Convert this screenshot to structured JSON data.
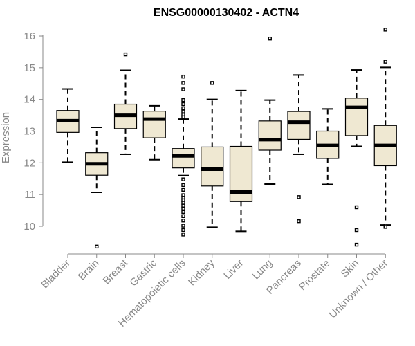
{
  "chart_data": {
    "type": "boxplot",
    "title": "ENSG00000130402 - ACTN4",
    "xlabel": "",
    "ylabel": "Expression",
    "ylim": [
      9.3,
      16.4
    ],
    "yticks": [
      10,
      11,
      12,
      13,
      14,
      15,
      16
    ],
    "grid": false,
    "legend": "none",
    "colors": {
      "box_fill": "#efe8d2",
      "stroke": "#000000",
      "axis": "#888888"
    },
    "categories": [
      "Bladder",
      "Brain",
      "Breast",
      "Gastric",
      "Hematopoietic cells",
      "Kidney",
      "Liver",
      "Lung",
      "Pancreas",
      "Prostate",
      "Skin",
      "Unknown / Other"
    ],
    "boxes": [
      {
        "category": "Bladder",
        "whisker_low": 12.02,
        "q1": 12.96,
        "median": 13.33,
        "q3": 13.65,
        "whisker_high": 14.33,
        "outliers": []
      },
      {
        "category": "Brain",
        "whisker_low": 11.07,
        "q1": 11.61,
        "median": 11.97,
        "q3": 12.32,
        "whisker_high": 13.12,
        "outliers": [
          9.36
        ]
      },
      {
        "category": "Breast",
        "whisker_low": 12.27,
        "q1": 13.08,
        "median": 13.5,
        "q3": 13.85,
        "whisker_high": 14.92,
        "outliers": [
          15.42
        ]
      },
      {
        "category": "Gastric",
        "whisker_low": 12.1,
        "q1": 12.79,
        "median": 13.38,
        "q3": 13.63,
        "whisker_high": 13.8,
        "outliers": []
      },
      {
        "category": "Hematopoietic cells",
        "whisker_low": 11.6,
        "q1": 11.84,
        "median": 12.22,
        "q3": 12.45,
        "whisker_high": 13.38,
        "outliers": [
          14.72,
          14.52,
          14.32,
          13.98,
          13.85,
          13.72,
          13.62,
          13.52,
          13.44,
          11.48,
          11.3,
          11.15,
          10.98,
          10.9,
          10.82,
          10.74,
          10.65,
          10.56,
          10.45,
          10.32,
          10.18,
          10.02,
          9.88,
          9.74
        ]
      },
      {
        "category": "Kidney",
        "whisker_low": 9.97,
        "q1": 11.27,
        "median": 11.8,
        "q3": 12.5,
        "whisker_high": 14.0,
        "outliers": [
          14.52
        ]
      },
      {
        "category": "Liver",
        "whisker_low": 9.84,
        "q1": 10.78,
        "median": 11.08,
        "q3": 12.52,
        "whisker_high": 14.28,
        "outliers": []
      },
      {
        "category": "Lung",
        "whisker_low": 11.33,
        "q1": 12.4,
        "median": 12.73,
        "q3": 13.32,
        "whisker_high": 13.98,
        "outliers": [
          15.92
        ]
      },
      {
        "category": "Pancreas",
        "whisker_low": 12.27,
        "q1": 12.74,
        "median": 13.28,
        "q3": 13.62,
        "whisker_high": 14.77,
        "outliers": [
          10.92,
          10.16
        ]
      },
      {
        "category": "Prostate",
        "whisker_low": 11.32,
        "q1": 12.14,
        "median": 12.55,
        "q3": 13.0,
        "whisker_high": 13.7,
        "outliers": []
      },
      {
        "category": "Skin",
        "whisker_low": 12.52,
        "q1": 12.86,
        "median": 13.75,
        "q3": 14.04,
        "whisker_high": 14.93,
        "outliers": [
          10.6,
          9.88,
          9.42
        ]
      },
      {
        "category": "Unknown / Other",
        "whisker_low": 10.04,
        "q1": 11.91,
        "median": 12.55,
        "q3": 13.18,
        "whisker_high": 15.01,
        "outliers": [
          16.2,
          15.19,
          10.02,
          9.98
        ]
      }
    ]
  }
}
